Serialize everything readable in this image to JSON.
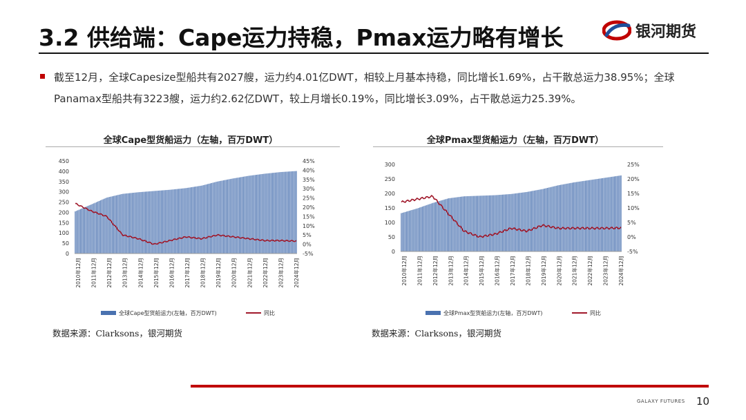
{
  "slide": {
    "title": "3.2 供给端：Cape运力持稳，Pmax运力略有增长",
    "logo_text": "银河期货",
    "bullet": "截至12月，全球Capesize型船共有2027艘，运力约4.01亿DWT，相较上月基本持稳，同比增长1.69%，占干散总运力38.95%；全球Panamax型船共有3223艘，运力约2.62亿DWT，较上月增长0.19%，同比增长3.09%，占干散总运力25.39%。",
    "footer_brand": "GALAXY FUTURES",
    "page_number": "10",
    "colors": {
      "accent": "#c00000",
      "bar": "#4a72b0",
      "line": "#a0182a"
    }
  },
  "chart_data": [
    {
      "type": "bar",
      "title": "全球Cape型货船运力（左轴，百万DWT）",
      "source": "数据来源：Clarksons，银河期货",
      "x_labels": [
        "2010年12月",
        "2011年12月",
        "2012年12月",
        "2013年12月",
        "2014年12月",
        "2015年12月",
        "2016年12月",
        "2017年12月",
        "2018年12月",
        "2019年12月",
        "2020年12月",
        "2021年12月",
        "2022年12月",
        "2023年12月",
        "2024年12月"
      ],
      "y_left": {
        "min": 0,
        "max": 450,
        "ticks": [
          "0",
          "50",
          "100",
          "150",
          "200",
          "250",
          "300",
          "350",
          "400",
          "450"
        ]
      },
      "y_right": {
        "min": -5,
        "max": 45,
        "ticks": [
          "-5%",
          "0%",
          "5%",
          "10%",
          "15%",
          "20%",
          "25%",
          "30%",
          "35%",
          "40%",
          "45%"
        ]
      },
      "bar_series": {
        "name": "全球Cape型货船运力(左轴，百万DWT)",
        "anchors": [
          205,
          238,
          272,
          290,
          298,
          304,
          310,
          318,
          330,
          350,
          365,
          378,
          388,
          396,
          401
        ]
      },
      "line_series": {
        "name": "同比",
        "anchors": [
          22,
          18,
          15,
          5,
          3,
          0,
          2,
          4,
          3,
          5,
          4,
          3,
          2,
          2,
          1.7
        ]
      }
    },
    {
      "type": "bar",
      "title": "全球Pmax型货船运力（左轴，百万DWT）",
      "source": "数据来源：Clarksons，银河期货",
      "x_labels": [
        "2010年12月",
        "2011年12月",
        "2012年12月",
        "2013年12月",
        "2014年12月",
        "2015年12月",
        "2016年12月",
        "2017年12月",
        "2018年12月",
        "2019年12月",
        "2020年12月",
        "2021年12月",
        "2022年12月",
        "2023年12月",
        "2024年12月"
      ],
      "y_left": {
        "min": 0,
        "max": 300,
        "ticks": [
          "0",
          "50",
          "100",
          "150",
          "200",
          "250",
          "300"
        ]
      },
      "y_right": {
        "min": -5,
        "max": 25,
        "ticks": [
          "-5%",
          "0%",
          "5%",
          "10%",
          "15%",
          "20%",
          "25%"
        ]
      },
      "bar_series": {
        "name": "全球Pmax型货船运力(左轴，百万DWT)",
        "anchors": [
          132,
          148,
          167,
          183,
          190,
          192,
          194,
          198,
          205,
          215,
          228,
          238,
          246,
          254,
          262
        ]
      },
      "line_series": {
        "name": "同比",
        "anchors": [
          12,
          13,
          14,
          8,
          2,
          0,
          1,
          3,
          2,
          4,
          3,
          3,
          3,
          3,
          3.1
        ]
      }
    }
  ]
}
